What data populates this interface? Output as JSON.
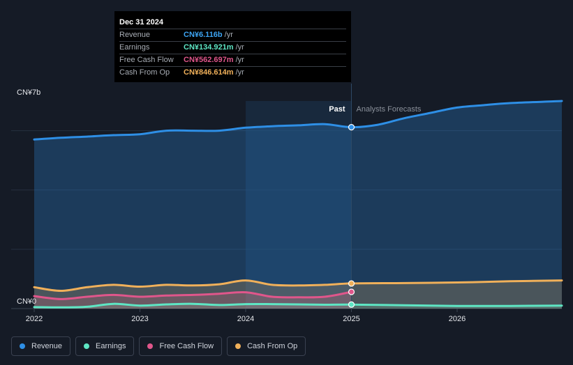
{
  "tooltip": {
    "date": "Dec 31 2024",
    "rows": [
      {
        "label": "Revenue",
        "value": "CN¥6.116b",
        "unit": "/yr",
        "color": "#3da5f4"
      },
      {
        "label": "Earnings",
        "value": "CN¥134.921m",
        "unit": "/yr",
        "color": "#5ee6c4"
      },
      {
        "label": "Free Cash Flow",
        "value": "CN¥562.697m",
        "unit": "/yr",
        "color": "#e0568b"
      },
      {
        "label": "Cash From Op",
        "value": "CN¥846.614m",
        "unit": "/yr",
        "color": "#f0b05a"
      }
    ]
  },
  "legend": [
    {
      "label": "Revenue",
      "color": "#2e8fe6"
    },
    {
      "label": "Earnings",
      "color": "#5ee6c4"
    },
    {
      "label": "Free Cash Flow",
      "color": "#e0568b"
    },
    {
      "label": "Cash From Op",
      "color": "#f0b05a"
    }
  ],
  "chart_data": {
    "type": "area",
    "y_max_label": "CN¥7b",
    "y_min_label": "CN¥0",
    "ylim": [
      0,
      7
    ],
    "xlim": [
      2022.0,
      2026.99
    ],
    "x_tick_labels": [
      "2022",
      "2023",
      "2024",
      "2025",
      "2026"
    ],
    "x_ticks": [
      2022,
      2023,
      2024,
      2025,
      2026
    ],
    "past_label": "Past",
    "forecast_label": "Analysts Forecasts",
    "past_end": 2025.0,
    "highlight_start": 2024.0,
    "y_unit": "CN¥ billions",
    "series": [
      {
        "name": "Revenue",
        "color": "#2e8fe6",
        "points": [
          [
            2022.0,
            5.7
          ],
          [
            2022.25,
            5.76
          ],
          [
            2022.5,
            5.8
          ],
          [
            2022.75,
            5.85
          ],
          [
            2023.0,
            5.88
          ],
          [
            2023.25,
            6.0
          ],
          [
            2023.5,
            6.0
          ],
          [
            2023.75,
            6.0
          ],
          [
            2024.0,
            6.1
          ],
          [
            2024.25,
            6.15
          ],
          [
            2024.5,
            6.18
          ],
          [
            2024.75,
            6.22
          ],
          [
            2025.0,
            6.116
          ],
          [
            2025.25,
            6.2
          ],
          [
            2025.5,
            6.42
          ],
          [
            2025.75,
            6.6
          ],
          [
            2026.0,
            6.78
          ],
          [
            2026.25,
            6.86
          ],
          [
            2026.5,
            6.93
          ],
          [
            2026.99,
            7.0
          ]
        ]
      },
      {
        "name": "Earnings",
        "color": "#5ee6c4",
        "points": [
          [
            2022.0,
            0.05
          ],
          [
            2022.25,
            0.04
          ],
          [
            2022.5,
            0.06
          ],
          [
            2022.75,
            0.16
          ],
          [
            2023.0,
            0.1
          ],
          [
            2023.25,
            0.14
          ],
          [
            2023.5,
            0.16
          ],
          [
            2023.75,
            0.12
          ],
          [
            2024.0,
            0.15
          ],
          [
            2024.25,
            0.15
          ],
          [
            2024.5,
            0.14
          ],
          [
            2024.75,
            0.13
          ],
          [
            2025.0,
            0.135
          ],
          [
            2025.5,
            0.11
          ],
          [
            2026.0,
            0.09
          ],
          [
            2026.5,
            0.09
          ],
          [
            2026.99,
            0.1
          ]
        ]
      },
      {
        "name": "Free Cash Flow",
        "color": "#e0568b",
        "points": [
          [
            2022.0,
            0.42
          ],
          [
            2022.25,
            0.32
          ],
          [
            2022.5,
            0.4
          ],
          [
            2022.75,
            0.46
          ],
          [
            2023.0,
            0.4
          ],
          [
            2023.25,
            0.44
          ],
          [
            2023.5,
            0.46
          ],
          [
            2023.75,
            0.5
          ],
          [
            2024.0,
            0.55
          ],
          [
            2024.25,
            0.4
          ],
          [
            2024.5,
            0.38
          ],
          [
            2024.75,
            0.4
          ],
          [
            2025.0,
            0.563
          ]
        ]
      },
      {
        "name": "Cash From Op",
        "color": "#f0b05a",
        "points": [
          [
            2022.0,
            0.72
          ],
          [
            2022.25,
            0.6
          ],
          [
            2022.5,
            0.72
          ],
          [
            2022.75,
            0.8
          ],
          [
            2023.0,
            0.74
          ],
          [
            2023.25,
            0.8
          ],
          [
            2023.5,
            0.78
          ],
          [
            2023.75,
            0.82
          ],
          [
            2024.0,
            0.95
          ],
          [
            2024.25,
            0.8
          ],
          [
            2024.5,
            0.78
          ],
          [
            2024.75,
            0.8
          ],
          [
            2025.0,
            0.847
          ],
          [
            2025.5,
            0.86
          ],
          [
            2026.0,
            0.88
          ],
          [
            2026.5,
            0.92
          ],
          [
            2026.99,
            0.95
          ]
        ]
      }
    ]
  }
}
